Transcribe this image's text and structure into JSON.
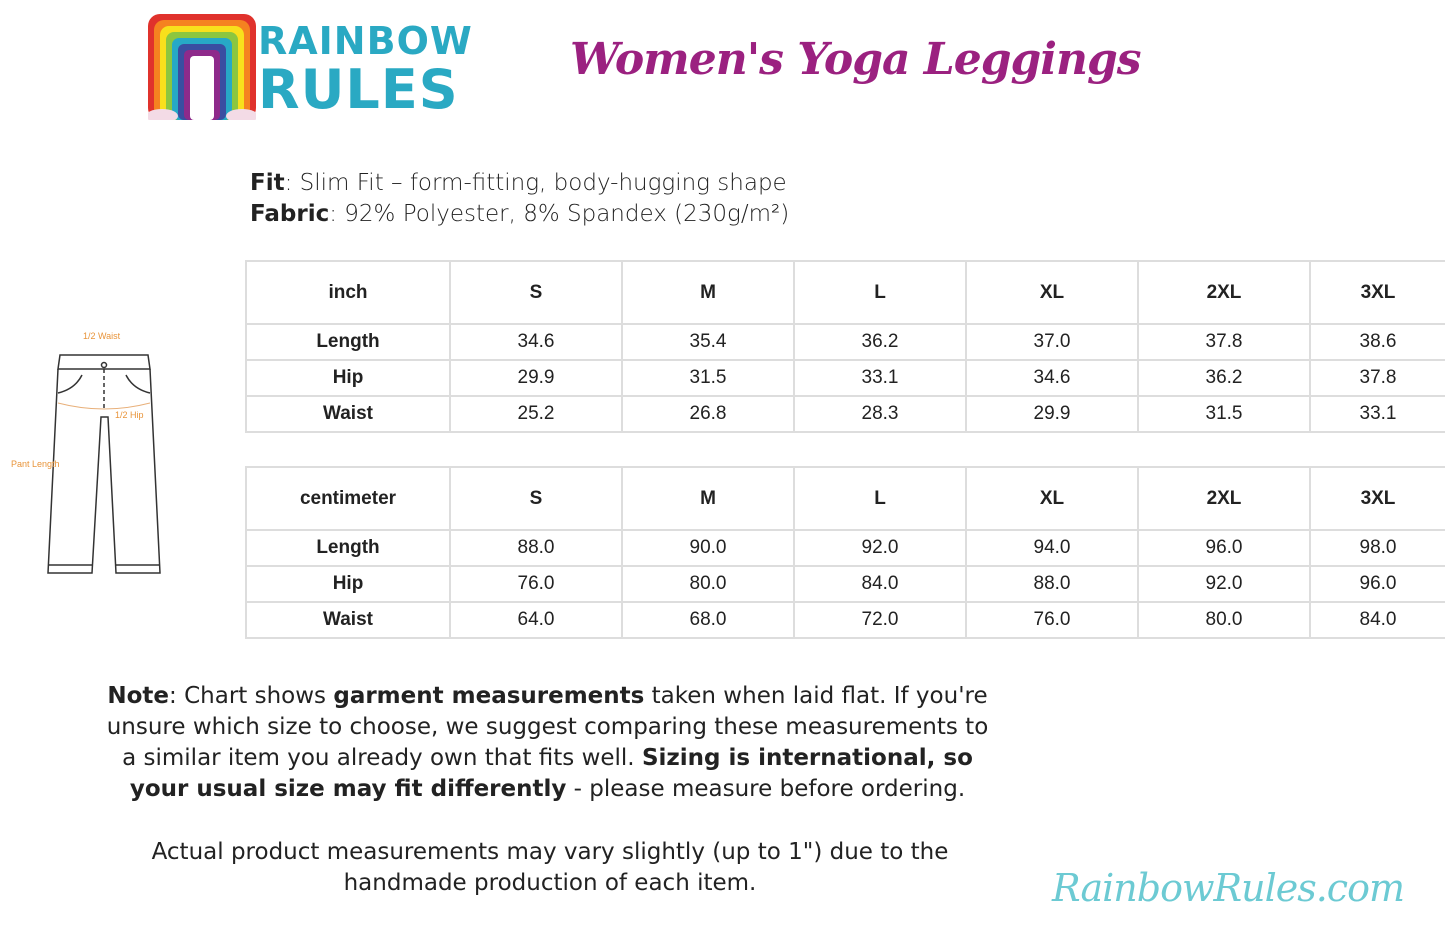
{
  "logo": {
    "line1": "RAINBOW",
    "line2": "RULES"
  },
  "title": "Women's Yoga Leggings",
  "specs": {
    "fit_label": "Fit",
    "fit_value": ": Slim Fit – form-fitting, body-hugging shape",
    "fabric_label": "Fabric",
    "fabric_value": ": 92% Polyester, 8% Spandex (230g/m²)"
  },
  "diagram": {
    "waist": "1/2 Waist",
    "hip": "1/2 Hip",
    "length": "Pant Length"
  },
  "inch_table": {
    "headers": [
      "inch",
      "S",
      "M",
      "L",
      "XL",
      "2XL",
      "3XL"
    ],
    "rows": [
      {
        "label": "Length",
        "values": [
          "34.6",
          "35.4",
          "36.2",
          "37.0",
          "37.8",
          "38.6"
        ]
      },
      {
        "label": "Hip",
        "values": [
          "29.9",
          "31.5",
          "33.1",
          "34.6",
          "36.2",
          "37.8"
        ]
      },
      {
        "label": "Waist",
        "values": [
          "25.2",
          "26.8",
          "28.3",
          "29.9",
          "31.5",
          "33.1"
        ]
      }
    ]
  },
  "cm_table": {
    "headers": [
      "centimeter",
      "S",
      "M",
      "L",
      "XL",
      "2XL",
      "3XL"
    ],
    "rows": [
      {
        "label": "Length",
        "values": [
          "88.0",
          "90.0",
          "92.0",
          "94.0",
          "96.0",
          "98.0"
        ]
      },
      {
        "label": "Hip",
        "values": [
          "76.0",
          "80.0",
          "84.0",
          "88.0",
          "92.0",
          "96.0"
        ]
      },
      {
        "label": "Waist",
        "values": [
          "64.0",
          "68.0",
          "72.0",
          "76.0",
          "80.0",
          "84.0"
        ]
      }
    ]
  },
  "note": {
    "b1": "Note",
    "t1": ": Chart shows ",
    "b2": "garment measurements",
    "t2": " taken when laid flat. If you're unsure which size to choose, we suggest comparing these measurements to a similar item you already own that fits well. ",
    "b3": "Sizing is international, so your usual size may fit differently",
    "t3": " - please measure before ordering."
  },
  "note2": "Actual product measurements may vary slightly (up to 1\") due to the handmade production of each item.",
  "website": "RainbowRules.com",
  "colors": {
    "title": "#9b2180",
    "logo": "#2aa9c3",
    "website": "#6ccad3",
    "diagram_labels": "#e8943a"
  }
}
